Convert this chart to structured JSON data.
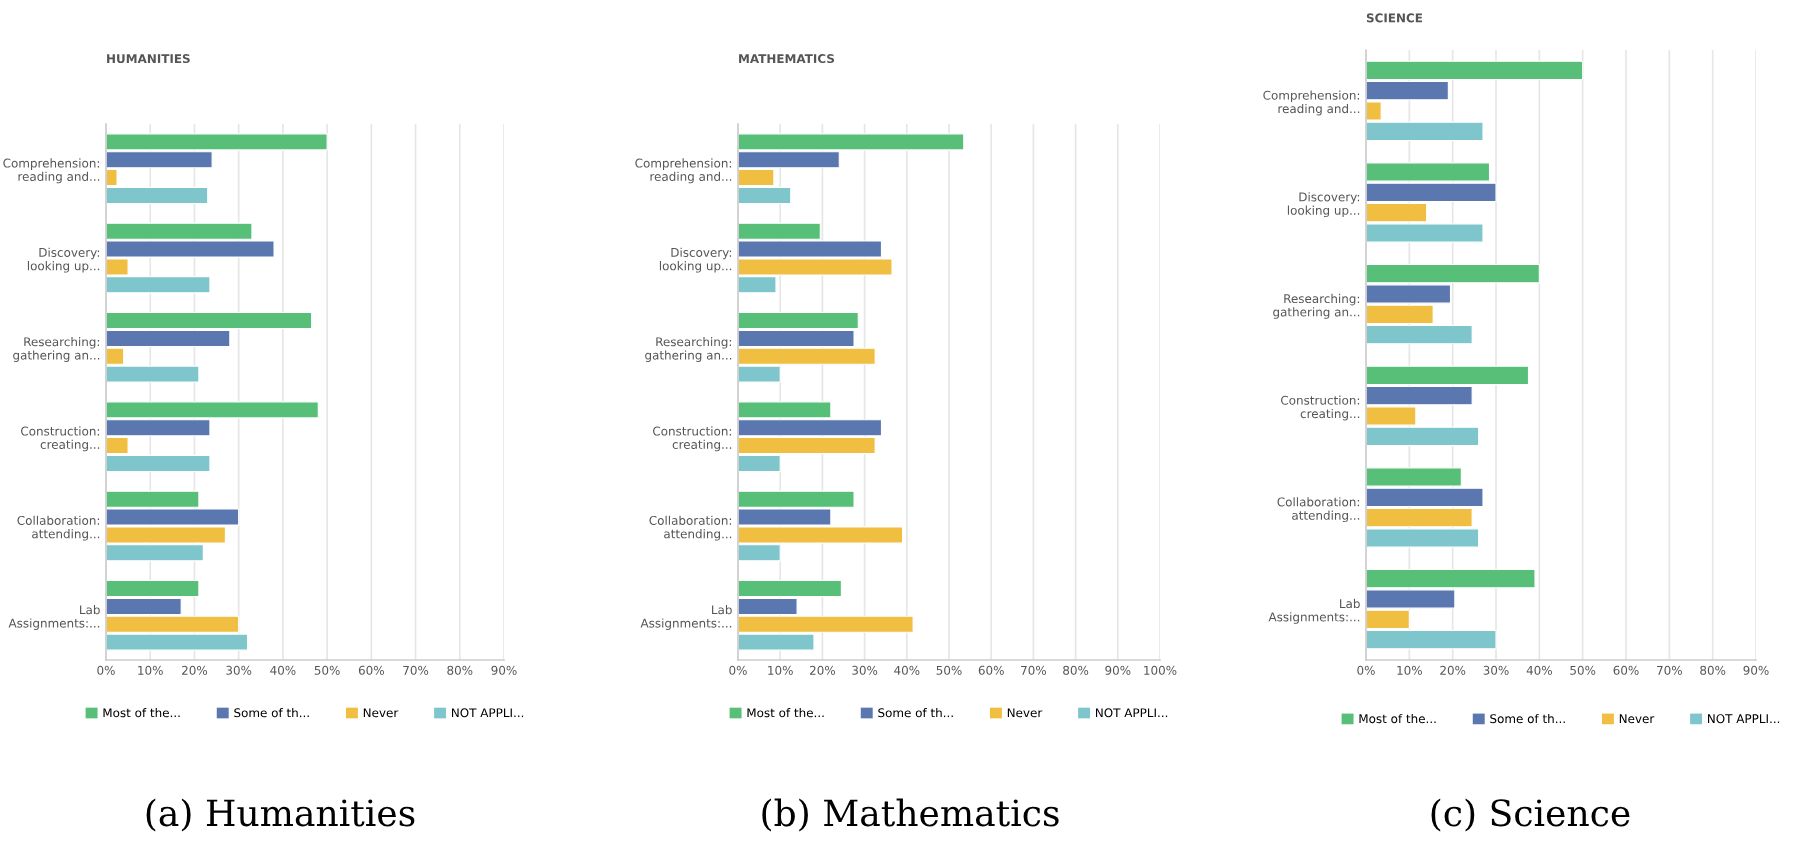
{
  "chart_data": [
    {
      "type": "bar",
      "orientation": "horizontal",
      "title": "HUMANITIES",
      "categories": [
        "Comprehension: reading and...",
        "Discovery: looking up...",
        "Researching: gathering an...",
        "Construction: creating...",
        "Collaboration: attending...",
        "Lab Assignments:..."
      ],
      "series": [
        {
          "name": "Most of the...",
          "color": "#57bf78",
          "values": [
            50,
            33,
            46.5,
            48,
            21,
            21
          ]
        },
        {
          "name": "Some of th...",
          "color": "#5a77b0",
          "values": [
            24,
            38,
            28,
            23.5,
            30,
            17
          ]
        },
        {
          "name": "Never",
          "color": "#f0bf41",
          "values": [
            2.5,
            5,
            4,
            5,
            27,
            30
          ]
        },
        {
          "name": "NOT APPLI...",
          "color": "#7ec6cb",
          "values": [
            23,
            23.5,
            21,
            23.5,
            22,
            32
          ]
        }
      ],
      "xlim": [
        0,
        90
      ],
      "xticks": [
        {
          "value": 0,
          "label": "0%"
        },
        {
          "value": 10,
          "label": "10%"
        },
        {
          "value": 20,
          "label": "20%"
        },
        {
          "value": 30,
          "label": "30%"
        },
        {
          "value": 40,
          "label": "40%"
        },
        {
          "value": 50,
          "label": "50%"
        },
        {
          "value": 60,
          "label": "60%"
        },
        {
          "value": 70,
          "label": "70%"
        },
        {
          "value": 80,
          "label": "80%"
        },
        {
          "value": 90,
          "label": "90%"
        }
      ],
      "grid": "x",
      "legend": "bottom",
      "annotations": [
        "(a) Humanities"
      ]
    },
    {
      "type": "bar",
      "orientation": "horizontal",
      "title": "MATHEMATICS",
      "categories": [
        "Comprehension: reading and...",
        "Discovery: looking up...",
        "Researching: gathering an...",
        "Construction: creating...",
        "Collaboration: attending...",
        "Lab Assignments:..."
      ],
      "series": [
        {
          "name": "Most of the...",
          "color": "#57bf78",
          "values": [
            53.5,
            19.5,
            28.5,
            22,
            27.5,
            24.5
          ]
        },
        {
          "name": "Some of th...",
          "color": "#5a77b0",
          "values": [
            24,
            34,
            27.5,
            34,
            22,
            14
          ]
        },
        {
          "name": "Never",
          "color": "#f0bf41",
          "values": [
            8.5,
            36.5,
            32.5,
            32.5,
            39,
            41.5
          ]
        },
        {
          "name": "NOT APPLI...",
          "color": "#7ec6cb",
          "values": [
            12.5,
            9,
            10,
            10,
            10,
            18
          ]
        }
      ],
      "xlim": [
        0,
        100
      ],
      "xticks": [
        {
          "value": 0,
          "label": "0%"
        },
        {
          "value": 10,
          "label": "10%"
        },
        {
          "value": 20,
          "label": "20%"
        },
        {
          "value": 30,
          "label": "30%"
        },
        {
          "value": 40,
          "label": "40%"
        },
        {
          "value": 50,
          "label": "50%"
        },
        {
          "value": 60,
          "label": "60%"
        },
        {
          "value": 70,
          "label": "70%"
        },
        {
          "value": 80,
          "label": "80%"
        },
        {
          "value": 90,
          "label": "90%"
        },
        {
          "value": 100,
          "label": "100%"
        }
      ],
      "grid": "x",
      "legend": "bottom",
      "annotations": [
        "(b) Mathematics"
      ]
    },
    {
      "type": "bar",
      "orientation": "horizontal",
      "title": "SCIENCE",
      "categories": [
        "Comprehension: reading and...",
        "Discovery: looking up...",
        "Researching: gathering an...",
        "Construction: creating...",
        "Collaboration: attending...",
        "Lab Assignments:..."
      ],
      "series": [
        {
          "name": "Most of the...",
          "color": "#57bf78",
          "values": [
            50,
            28.5,
            40,
            37.5,
            22,
            39
          ]
        },
        {
          "name": "Some of th...",
          "color": "#5a77b0",
          "values": [
            19,
            30,
            19.5,
            24.5,
            27,
            20.5
          ]
        },
        {
          "name": "Never",
          "color": "#f0bf41",
          "values": [
            3.5,
            14,
            15.5,
            11.5,
            24.5,
            10
          ]
        },
        {
          "name": "NOT APPLI...",
          "color": "#7ec6cb",
          "values": [
            27,
            27,
            24.5,
            26,
            26,
            30
          ]
        }
      ],
      "xlim": [
        0,
        90
      ],
      "xticks": [
        {
          "value": 0,
          "label": "0%"
        },
        {
          "value": 10,
          "label": "10%"
        },
        {
          "value": 20,
          "label": "20%"
        },
        {
          "value": 30,
          "label": "30%"
        },
        {
          "value": 40,
          "label": "40%"
        },
        {
          "value": 50,
          "label": "50%"
        },
        {
          "value": 60,
          "label": "60%"
        },
        {
          "value": 70,
          "label": "70%"
        },
        {
          "value": 80,
          "label": "80%"
        },
        {
          "value": 90,
          "label": "90%"
        }
      ],
      "grid": "x",
      "legend": "bottom",
      "annotations": [
        "(c) Science"
      ]
    }
  ]
}
